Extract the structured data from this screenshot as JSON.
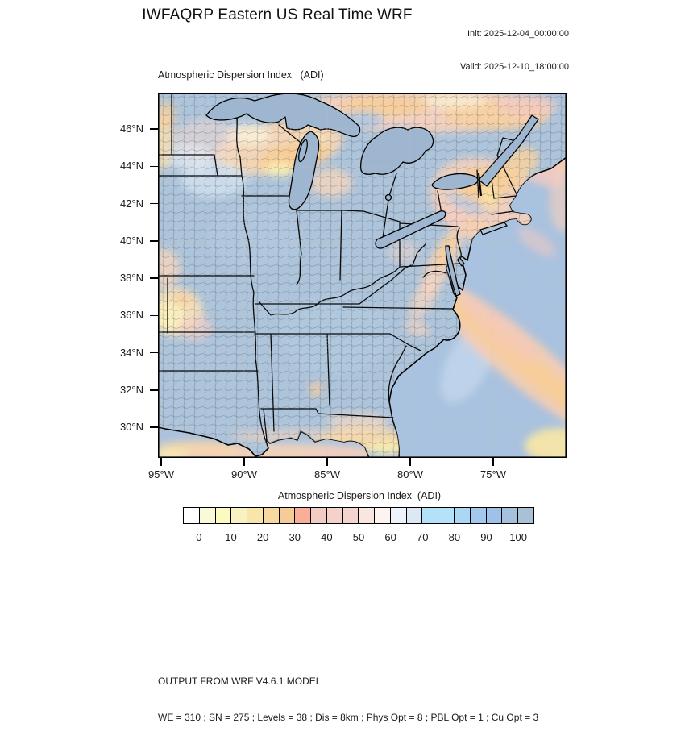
{
  "header": {
    "title": "IWFAQRP Eastern US Real Time WRF",
    "init": "Init: 2025-12-04_00:00:00",
    "valid": "Valid: 2025-12-10_18:00:00"
  },
  "map": {
    "subtitle": "Atmospheric Dispersion Index   (ADI)",
    "lat_tick_labels": [
      "46°N",
      "44°N",
      "42°N",
      "40°N",
      "38°N",
      "36°N",
      "34°N",
      "32°N",
      "30°N"
    ],
    "lon_tick_labels": [
      "95°W",
      "90°W",
      "85°W",
      "80°W",
      "75°W"
    ],
    "palette": {
      "ocean": "#A9C2DF",
      "land_high_adi": "#ADC4DB",
      "lakes": "#9FB6D0",
      "warm_peach": "#F5D0BC",
      "warm_orange": "#F8CC94",
      "warm_yellow": "#FAF0BE",
      "warm_pink": "#F3CCC2",
      "boundary": "#000000",
      "gridline": "#D8C49E"
    }
  },
  "colorbar": {
    "title": "Atmospheric Dispersion Index  (ADI)",
    "tick_labels": [
      "0",
      "10",
      "20",
      "30",
      "40",
      "50",
      "60",
      "70",
      "80",
      "90",
      "100"
    ],
    "cell_colors": [
      "#FFFFFF",
      "#FAFAD8",
      "#FBFBC0",
      "#F8F2C3",
      "#F7E5A9",
      "#F7D9A0",
      "#F5CC95",
      "#F9AE97",
      "#F2CBC3",
      "#F4D2C9",
      "#F3D5CD",
      "#F9E7DF",
      "#FDF4F1",
      "#EEF2FA",
      "#DCE8F5",
      "#B2E1F8",
      "#B4E2F9",
      "#AAD7F4",
      "#A2C8EE",
      "#9EC1E9",
      "#A4C0DD",
      "#A9C1D7"
    ]
  },
  "footer": {
    "line1": "OUTPUT FROM WRF V4.6.1 MODEL",
    "line2": "WE = 310 ; SN = 275 ; Levels = 38 ; Dis = 8km ; Phys Opt = 8 ; PBL Opt = 1 ; Cu Opt = 3"
  },
  "chart_data": {
    "type": "heatmap",
    "subtype": "geographic-filled-contour",
    "title": "IWFAQRP Eastern US Real Time WRF",
    "variable": "Atmospheric Dispersion Index (ADI)",
    "init_time": "2025-12-04_00:00:00",
    "valid_time": "2025-12-10_18:00:00",
    "x_axis": {
      "label": "longitude",
      "ticks_deg_west": [
        95,
        90,
        85,
        80,
        75
      ]
    },
    "y_axis": {
      "label": "latitude",
      "ticks_deg_north": [
        46,
        44,
        42,
        40,
        38,
        36,
        34,
        32,
        30
      ]
    },
    "colorbar": {
      "min": 0,
      "max": 100,
      "contour_interval": 5,
      "tick_interval": 10
    },
    "field_summary": [
      {
        "region": "Central/Midwest/Southeast US interior (IA, IL, MO, IN, OH, KY, TN, MS, AL, GA)",
        "adi": "90-100 (gray-blue, high dispersion)"
      },
      {
        "region": "Northern Wisconsin / Upper Michigan",
        "adi": "10-40 (yellow-orange, low dispersion)"
      },
      {
        "region": "Southern Ontario / Quebec strip",
        "adi": "25-55 (peach-orange)"
      },
      {
        "region": "New England / central New York / New Jersey",
        "adi": "20-55 (orange-peach)"
      },
      {
        "region": "Mid-Atlantic piedmont band (PA-MD-VA)",
        "adi": "30-55 (peach)"
      },
      {
        "region": "Ozarks / western map edge near 36-38N",
        "adi": "10-30 (yellow)"
      },
      {
        "region": "Florida panhandle / south Georgia coast",
        "adi": "15-40 (orange-yellow)"
      },
      {
        "region": "Gulf Stream band and NW Atlantic off New England",
        "adi": "10-45 (yellow-orange over water)"
      },
      {
        "region": "Open Atlantic and Gulf of Mexico waters",
        "adi": "85-100 (pale gray-blue)"
      }
    ]
  }
}
